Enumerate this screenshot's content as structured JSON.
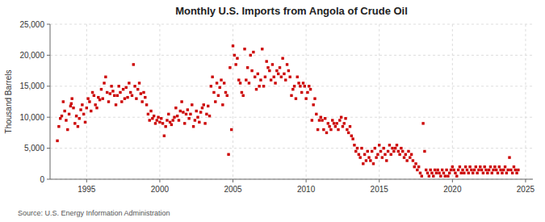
{
  "chart_data": {
    "type": "scatter",
    "title": "Monthly U.S. Imports from Angola of Crude Oil",
    "ylabel": "Thousand Barrels",
    "source": "Source: U.S. Energy Information Administration",
    "color": "#cc0000",
    "marker": "square",
    "grid": true,
    "xlim": [
      1992.5,
      2025.5
    ],
    "ylim": [
      0,
      25000
    ],
    "xticks": [
      1995,
      2000,
      2005,
      2010,
      2015,
      2020,
      2025
    ],
    "yticks": [
      0,
      {
        "value": 5000,
        "label": "5,000"
      },
      {
        "value": 10000,
        "label": "10,000"
      },
      {
        "value": 15000,
        "label": "15,000"
      },
      {
        "value": 20000,
        "label": "20,000"
      },
      {
        "value": 25000,
        "label": "25,000"
      }
    ],
    "x": [
      1993.0,
      1993.1,
      1993.2,
      1993.3,
      1993.4,
      1993.5,
      1993.6,
      1993.7,
      1993.8,
      1993.9,
      1993.95,
      1994.0,
      1994.1,
      1994.2,
      1994.3,
      1994.4,
      1994.5,
      1994.6,
      1994.7,
      1994.8,
      1994.9,
      1995.0,
      1995.1,
      1995.2,
      1995.3,
      1995.4,
      1995.5,
      1995.6,
      1995.7,
      1995.8,
      1995.9,
      1996.0,
      1996.1,
      1996.2,
      1996.3,
      1996.4,
      1996.5,
      1996.6,
      1996.7,
      1996.8,
      1996.9,
      1997.0,
      1997.1,
      1997.2,
      1997.3,
      1997.4,
      1997.5,
      1997.6,
      1997.7,
      1997.8,
      1997.9,
      1998.0,
      1998.1,
      1998.2,
      1998.3,
      1998.4,
      1998.5,
      1998.6,
      1998.7,
      1998.8,
      1998.9,
      1999.0,
      1999.1,
      1999.2,
      1999.3,
      1999.4,
      1999.5,
      1999.6,
      1999.7,
      1999.8,
      1999.9,
      2000.0,
      2000.1,
      2000.2,
      2000.3,
      2000.4,
      2000.5,
      2000.6,
      2000.7,
      2000.8,
      2000.9,
      2001.0,
      2001.1,
      2001.2,
      2001.3,
      2001.4,
      2001.5,
      2001.6,
      2001.7,
      2001.8,
      2001.9,
      2002.0,
      2002.1,
      2002.2,
      2002.3,
      2002.4,
      2002.5,
      2002.6,
      2002.7,
      2002.8,
      2002.9,
      2003.0,
      2003.1,
      2003.2,
      2003.3,
      2003.4,
      2003.5,
      2003.6,
      2003.7,
      2003.8,
      2003.9,
      2004.0,
      2004.1,
      2004.2,
      2004.3,
      2004.4,
      2004.5,
      2004.6,
      2004.7,
      2004.8,
      2004.9,
      2005.0,
      2005.1,
      2005.2,
      2005.3,
      2005.4,
      2005.5,
      2005.6,
      2005.7,
      2005.8,
      2005.9,
      2006.0,
      2006.1,
      2006.2,
      2006.3,
      2006.4,
      2006.5,
      2006.6,
      2006.7,
      2006.8,
      2006.9,
      2007.0,
      2007.1,
      2007.2,
      2007.3,
      2007.4,
      2007.5,
      2007.6,
      2007.7,
      2007.8,
      2007.9,
      2008.0,
      2008.1,
      2008.2,
      2008.3,
      2008.4,
      2008.5,
      2008.6,
      2008.7,
      2008.8,
      2008.9,
      2009.0,
      2009.1,
      2009.2,
      2009.3,
      2009.4,
      2009.5,
      2009.6,
      2009.7,
      2009.8,
      2009.9,
      2010.0,
      2010.1,
      2010.2,
      2010.3,
      2010.4,
      2010.5,
      2010.6,
      2010.7,
      2010.8,
      2010.9,
      2011.0,
      2011.1,
      2011.2,
      2011.3,
      2011.4,
      2011.5,
      2011.6,
      2011.7,
      2011.8,
      2011.9,
      2012.0,
      2012.1,
      2012.2,
      2012.3,
      2012.4,
      2012.5,
      2012.6,
      2012.7,
      2012.8,
      2012.9,
      2013.0,
      2013.1,
      2013.2,
      2013.3,
      2013.4,
      2013.5,
      2013.6,
      2013.7,
      2013.8,
      2013.9,
      2014.0,
      2014.1,
      2014.2,
      2014.3,
      2014.4,
      2014.5,
      2014.6,
      2014.7,
      2014.8,
      2014.9,
      2015.0,
      2015.1,
      2015.2,
      2015.3,
      2015.4,
      2015.5,
      2015.6,
      2015.7,
      2015.8,
      2015.9,
      2016.0,
      2016.1,
      2016.2,
      2016.3,
      2016.4,
      2016.5,
      2016.6,
      2016.7,
      2016.8,
      2016.9,
      2017.0,
      2017.1,
      2017.2,
      2017.3,
      2017.4,
      2017.5,
      2017.6,
      2017.7,
      2017.8,
      2017.9,
      2018.0,
      2018.1,
      2018.2,
      2018.3,
      2018.4,
      2018.5,
      2018.6,
      2018.7,
      2018.8,
      2018.9,
      2019.0,
      2019.1,
      2019.2,
      2019.3,
      2019.4,
      2019.5,
      2019.6,
      2019.7,
      2019.8,
      2019.9,
      2020.0,
      2020.1,
      2020.2,
      2020.3,
      2020.4,
      2020.5,
      2020.6,
      2020.7,
      2020.8,
      2020.9,
      2021.0,
      2021.1,
      2021.2,
      2021.3,
      2021.4,
      2021.5,
      2021.6,
      2021.7,
      2021.8,
      2021.9,
      2022.0,
      2022.1,
      2022.2,
      2022.3,
      2022.4,
      2022.5,
      2022.6,
      2022.7,
      2022.8,
      2022.9,
      2023.0,
      2023.1,
      2023.2,
      2023.3,
      2023.4,
      2023.5,
      2023.6,
      2023.7,
      2023.8,
      2023.9,
      2024.0,
      2024.1,
      2024.2,
      2024.3,
      2024.4,
      2024.5
    ],
    "values": [
      6200,
      8500,
      9800,
      10200,
      12500,
      11000,
      9500,
      8000,
      10500,
      11800,
      12200,
      13000,
      11500,
      9000,
      10200,
      8500,
      9800,
      11200,
      12000,
      10500,
      9200,
      11500,
      13000,
      12500,
      11000,
      14000,
      13500,
      12000,
      11500,
      13200,
      12800,
      14500,
      13000,
      15500,
      16500,
      14000,
      12500,
      13800,
      15000,
      14200,
      13500,
      12000,
      13500,
      15000,
      14000,
      12500,
      14500,
      13000,
      14800,
      13200,
      15500,
      14000,
      13500,
      18500,
      15000,
      13000,
      14500,
      15500,
      13800,
      12500,
      14000,
      13200,
      12000,
      10500,
      9500,
      11000,
      9800,
      10200,
      9000,
      9500,
      10000,
      9200,
      9800,
      9000,
      7000,
      8500,
      9500,
      10500,
      9200,
      8800,
      9500,
      10000,
      11500,
      10200,
      9500,
      11000,
      12500,
      10800,
      9000,
      10500,
      11200,
      9800,
      10500,
      12000,
      8500,
      9500,
      11000,
      10000,
      9200,
      10800,
      11500,
      12000,
      9000,
      10500,
      11800,
      10200,
      15000,
      16500,
      14000,
      12500,
      15500,
      13500,
      14800,
      16000,
      12000,
      15500,
      14000,
      13500,
      4000,
      18000,
      8000,
      21500,
      20000,
      18500,
      19500,
      16000,
      15500,
      14000,
      13500,
      21000,
      16000,
      18000,
      15500,
      20000,
      17500,
      20500,
      16500,
      14500,
      17000,
      15000,
      16000,
      21000,
      15000,
      16500,
      19000,
      18000,
      17500,
      16000,
      18500,
      16500,
      15500,
      17500,
      17000,
      18000,
      16500,
      19500,
      17000,
      16000,
      18500,
      17500,
      16500,
      13500,
      14500,
      15000,
      13000,
      16500,
      15500,
      15000,
      14000,
      15500,
      15000,
      13000,
      14000,
      15000,
      14500,
      9500,
      12000,
      13000,
      10500,
      8000,
      9500,
      10000,
      9500,
      8000,
      9800,
      7500,
      9000,
      8500,
      8000,
      9500,
      9000,
      8500,
      9000,
      8000,
      9500,
      10000,
      8500,
      9000,
      9800,
      8000,
      7500,
      8500,
      7000,
      6500,
      5500,
      4500,
      5000,
      4000,
      3500,
      5000,
      2500,
      4000,
      3000,
      4500,
      3500,
      3000,
      4500,
      2500,
      5000,
      3500,
      4000,
      5500,
      4500,
      3500,
      5000,
      4000,
      3000,
      4500,
      5500,
      4000,
      5000,
      4500,
      5000,
      5500,
      4500,
      4000,
      5000,
      4500,
      3500,
      4000,
      3000,
      4500,
      3500,
      4000,
      3000,
      2000,
      2500,
      1500,
      2000,
      1000,
      500,
      9000,
      4500,
      1500,
      1000,
      500,
      1500,
      1000,
      500,
      1500,
      1000,
      1500,
      1000,
      500,
      1500,
      1000,
      500,
      1500,
      500,
      1000,
      1500,
      2000,
      1500,
      1000,
      500,
      1500,
      2000,
      1000,
      1500,
      1000,
      2000,
      1500,
      1000,
      2000,
      1500,
      1000,
      1500,
      2000,
      1000,
      1500,
      2000,
      1500,
      1000,
      2000,
      1500,
      1000,
      1500,
      2000,
      1000,
      1500,
      2000,
      1500,
      1000,
      2000,
      1500,
      1000,
      1500,
      2000,
      1000,
      1500,
      3500,
      1500,
      1000,
      2000,
      1500,
      1000,
      1500
    ]
  }
}
